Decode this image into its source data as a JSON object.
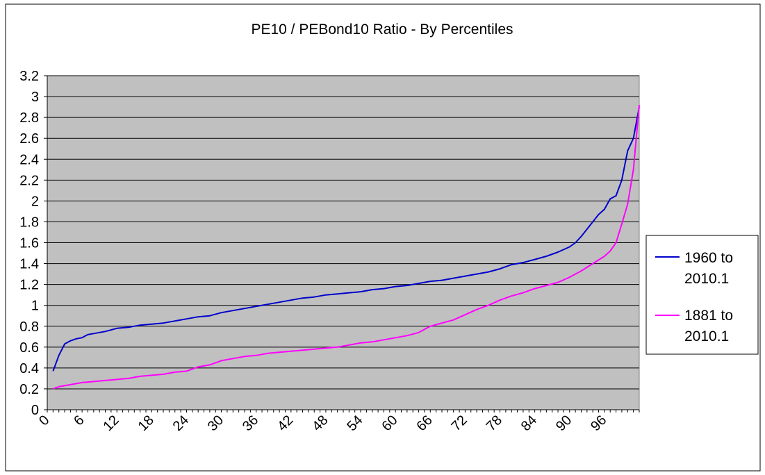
{
  "chart_data": {
    "type": "line",
    "title": "PE10 / PEBond10 Ratio - By Percentiles",
    "xlabel": "",
    "ylabel": "",
    "xlim": [
      0,
      100
    ],
    "ylim": [
      0,
      3.2
    ],
    "y_ticks": [
      "0",
      "0.2",
      "0.4",
      "0.6",
      "0.8",
      "1",
      "1.2",
      "1.4",
      "1.6",
      "1.8",
      "2",
      "2.2",
      "2.4",
      "2.6",
      "2.8",
      "3",
      "3.2"
    ],
    "x_ticks": [
      "0",
      "6",
      "12",
      "18",
      "24",
      "30",
      "36",
      "42",
      "48",
      "54",
      "60",
      "66",
      "72",
      "78",
      "84",
      "90",
      "96"
    ],
    "grid": true,
    "plot_background": "#c0c0c0",
    "legend_position": "right",
    "series": [
      {
        "name": "1960 to 2010.1",
        "color": "#0000cc",
        "points": [
          [
            1,
            0.37
          ],
          [
            2,
            0.52
          ],
          [
            3,
            0.63
          ],
          [
            4,
            0.66
          ],
          [
            5,
            0.68
          ],
          [
            6,
            0.69
          ],
          [
            7,
            0.72
          ],
          [
            8,
            0.73
          ],
          [
            10,
            0.75
          ],
          [
            12,
            0.78
          ],
          [
            14,
            0.79
          ],
          [
            16,
            0.81
          ],
          [
            18,
            0.82
          ],
          [
            20,
            0.83
          ],
          [
            22,
            0.85
          ],
          [
            24,
            0.87
          ],
          [
            26,
            0.89
          ],
          [
            28,
            0.9
          ],
          [
            30,
            0.93
          ],
          [
            32,
            0.95
          ],
          [
            34,
            0.97
          ],
          [
            36,
            0.99
          ],
          [
            38,
            1.01
          ],
          [
            40,
            1.03
          ],
          [
            42,
            1.05
          ],
          [
            44,
            1.07
          ],
          [
            46,
            1.08
          ],
          [
            48,
            1.1
          ],
          [
            50,
            1.11
          ],
          [
            52,
            1.12
          ],
          [
            54,
            1.13
          ],
          [
            56,
            1.15
          ],
          [
            58,
            1.16
          ],
          [
            60,
            1.18
          ],
          [
            62,
            1.19
          ],
          [
            64,
            1.21
          ],
          [
            66,
            1.23
          ],
          [
            68,
            1.24
          ],
          [
            70,
            1.26
          ],
          [
            72,
            1.28
          ],
          [
            74,
            1.3
          ],
          [
            76,
            1.32
          ],
          [
            78,
            1.35
          ],
          [
            80,
            1.39
          ],
          [
            82,
            1.41
          ],
          [
            84,
            1.44
          ],
          [
            86,
            1.47
          ],
          [
            88,
            1.51
          ],
          [
            90,
            1.56
          ],
          [
            91,
            1.6
          ],
          [
            92,
            1.66
          ],
          [
            93,
            1.73
          ],
          [
            94,
            1.8
          ],
          [
            95,
            1.87
          ],
          [
            96,
            1.92
          ],
          [
            97,
            2.02
          ],
          [
            98,
            2.05
          ],
          [
            99,
            2.2
          ],
          [
            100,
            2.48
          ],
          [
            101,
            2.6
          ],
          [
            102,
            2.9
          ]
        ]
      },
      {
        "name": "1881 to 2010.1",
        "color": "#ff00ff",
        "points": [
          [
            1,
            0.2
          ],
          [
            2,
            0.22
          ],
          [
            4,
            0.24
          ],
          [
            6,
            0.26
          ],
          [
            8,
            0.27
          ],
          [
            10,
            0.28
          ],
          [
            12,
            0.29
          ],
          [
            14,
            0.3
          ],
          [
            16,
            0.32
          ],
          [
            18,
            0.33
          ],
          [
            20,
            0.34
          ],
          [
            22,
            0.36
          ],
          [
            24,
            0.37
          ],
          [
            26,
            0.41
          ],
          [
            28,
            0.43
          ],
          [
            30,
            0.47
          ],
          [
            32,
            0.49
          ],
          [
            34,
            0.51
          ],
          [
            36,
            0.52
          ],
          [
            38,
            0.54
          ],
          [
            40,
            0.55
          ],
          [
            42,
            0.56
          ],
          [
            44,
            0.57
          ],
          [
            46,
            0.58
          ],
          [
            48,
            0.59
          ],
          [
            50,
            0.6
          ],
          [
            52,
            0.62
          ],
          [
            54,
            0.64
          ],
          [
            56,
            0.65
          ],
          [
            58,
            0.67
          ],
          [
            60,
            0.69
          ],
          [
            62,
            0.71
          ],
          [
            64,
            0.74
          ],
          [
            66,
            0.8
          ],
          [
            68,
            0.83
          ],
          [
            70,
            0.86
          ],
          [
            72,
            0.91
          ],
          [
            74,
            0.96
          ],
          [
            76,
            1.0
          ],
          [
            78,
            1.05
          ],
          [
            80,
            1.09
          ],
          [
            82,
            1.12
          ],
          [
            84,
            1.16
          ],
          [
            86,
            1.19
          ],
          [
            88,
            1.22
          ],
          [
            90,
            1.27
          ],
          [
            92,
            1.33
          ],
          [
            94,
            1.4
          ],
          [
            96,
            1.47
          ],
          [
            97,
            1.52
          ],
          [
            98,
            1.6
          ],
          [
            99,
            1.78
          ],
          [
            100,
            1.97
          ],
          [
            101,
            2.3
          ],
          [
            102,
            2.92
          ]
        ]
      }
    ]
  }
}
